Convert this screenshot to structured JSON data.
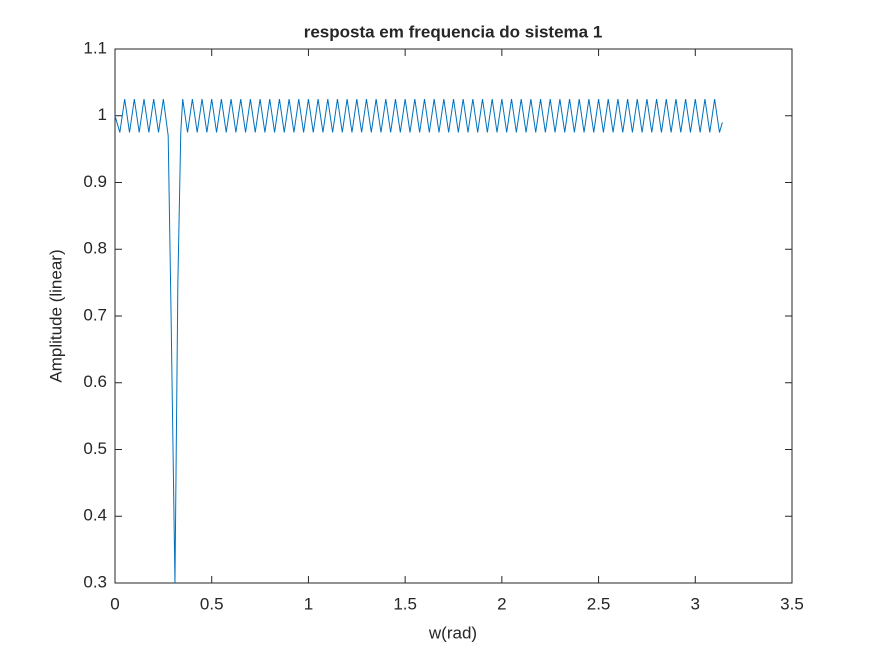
{
  "chart_data": {
    "type": "line",
    "title": "resposta em frequencia do sistema 1",
    "x_label": "w(rad)",
    "y_label": "Amplitude (linear)",
    "xlim": [
      0,
      3.5
    ],
    "xticks": [
      0,
      0.5,
      1,
      1.5,
      2,
      2.5,
      3,
      3.5
    ],
    "ylim": [
      0.3,
      1.1
    ],
    "yticks": [
      0.3,
      0.4,
      0.5,
      0.6,
      0.7,
      0.8,
      0.9,
      1,
      1.1
    ],
    "grid": false,
    "x": [
      0,
      0.025,
      0.05,
      0.075,
      0.1,
      0.125,
      0.15,
      0.175,
      0.2,
      0.225,
      0.25,
      0.275,
      0.29,
      0.31,
      0.325,
      0.34,
      0.35,
      0.375,
      0.4,
      0.425,
      0.45,
      0.475,
      0.5,
      0.525,
      0.55,
      0.575,
      0.6,
      0.625,
      0.65,
      0.675,
      0.7,
      0.725,
      0.75,
      0.775,
      0.8,
      0.825,
      0.85,
      0.875,
      0.9,
      0.925,
      0.95,
      0.975,
      1,
      1.025,
      1.05,
      1.075,
      1.1,
      1.125,
      1.15,
      1.175,
      1.2,
      1.225,
      1.25,
      1.275,
      1.3,
      1.325,
      1.35,
      1.375,
      1.4,
      1.425,
      1.45,
      1.475,
      1.5,
      1.525,
      1.55,
      1.575,
      1.6,
      1.625,
      1.65,
      1.675,
      1.7,
      1.725,
      1.75,
      1.775,
      1.8,
      1.825,
      1.85,
      1.875,
      1.9,
      1.925,
      1.95,
      1.975,
      2,
      2.025,
      2.05,
      2.075,
      2.1,
      2.125,
      2.15,
      2.175,
      2.2,
      2.225,
      2.25,
      2.275,
      2.3,
      2.325,
      2.35,
      2.375,
      2.4,
      2.425,
      2.45,
      2.475,
      2.5,
      2.525,
      2.55,
      2.575,
      2.6,
      2.625,
      2.65,
      2.675,
      2.7,
      2.725,
      2.75,
      2.775,
      2.8,
      2.825,
      2.85,
      2.875,
      2.9,
      2.925,
      2.95,
      2.975,
      3,
      3.025,
      3.05,
      3.075,
      3.1,
      3.125,
      3.14
    ],
    "series": [
      {
        "color": "#0072bd",
        "values": [
          1.0,
          0.975,
          1.025,
          0.975,
          1.025,
          0.975,
          1.025,
          0.975,
          1.025,
          0.975,
          1.025,
          0.97,
          0.7,
          0.3,
          0.75,
          0.975,
          1.025,
          0.975,
          1.025,
          0.975,
          1.025,
          0.975,
          1.025,
          0.975,
          1.025,
          0.975,
          1.025,
          0.975,
          1.025,
          0.975,
          1.025,
          0.975,
          1.025,
          0.975,
          1.025,
          0.975,
          1.025,
          0.975,
          1.025,
          0.975,
          1.025,
          0.975,
          1.025,
          0.975,
          1.025,
          0.975,
          1.025,
          0.975,
          1.025,
          0.975,
          1.025,
          0.975,
          1.025,
          0.975,
          1.025,
          0.975,
          1.025,
          0.975,
          1.025,
          0.975,
          1.025,
          0.975,
          1.025,
          0.975,
          1.025,
          0.975,
          1.025,
          0.975,
          1.025,
          0.975,
          1.025,
          0.975,
          1.025,
          0.975,
          1.025,
          0.975,
          1.025,
          0.975,
          1.025,
          0.975,
          1.025,
          0.975,
          1.025,
          0.975,
          1.025,
          0.975,
          1.025,
          0.975,
          1.025,
          0.975,
          1.025,
          0.975,
          1.025,
          0.975,
          1.025,
          0.975,
          1.025,
          0.975,
          1.025,
          0.975,
          1.025,
          0.975,
          1.025,
          0.975,
          1.025,
          0.975,
          1.025,
          0.975,
          1.025,
          0.975,
          1.025,
          0.975,
          1.025,
          0.975,
          1.025,
          0.975,
          1.025,
          0.975,
          1.025,
          0.975,
          1.025,
          0.975,
          1.025,
          0.975,
          1.025,
          0.975,
          1.025,
          0.975,
          0.99
        ]
      }
    ]
  }
}
